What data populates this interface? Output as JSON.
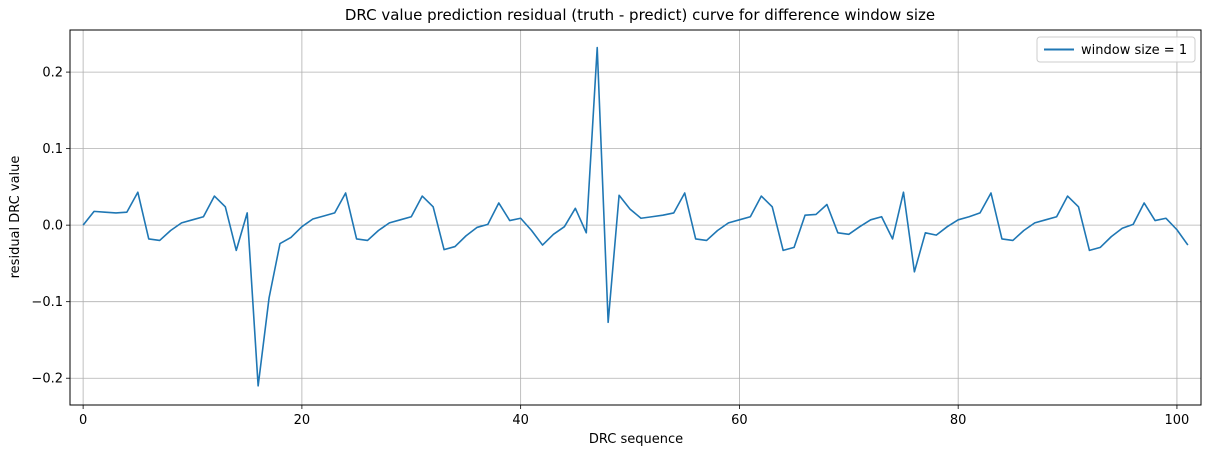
{
  "chart_data": {
    "type": "line",
    "title": "DRC value prediction residual (truth - predict) curve for difference window size",
    "xlabel": "DRC sequence",
    "ylabel": "residual DRC value",
    "xlim": [
      -1.2,
      102.2
    ],
    "ylim": [
      -0.235,
      0.255
    ],
    "xticks": [
      0,
      20,
      40,
      60,
      80,
      100
    ],
    "yticks": [
      -0.2,
      -0.1,
      0.0,
      0.1,
      0.2
    ],
    "xtick_labels": [
      "0",
      "20",
      "40",
      "60",
      "80",
      "100"
    ],
    "ytick_labels": [
      "−0.2",
      "−0.1",
      "0.0",
      "0.1",
      "0.2"
    ],
    "grid": true,
    "legend_position": "top-right",
    "series": [
      {
        "name": "window size = 1",
        "color": "#1f77b4",
        "x": [
          0,
          1,
          2,
          3,
          4,
          5,
          6,
          7,
          8,
          9,
          10,
          11,
          12,
          13,
          14,
          15,
          16,
          17,
          18,
          19,
          20,
          21,
          22,
          23,
          24,
          25,
          26,
          27,
          28,
          29,
          30,
          31,
          32,
          33,
          34,
          35,
          36,
          37,
          38,
          39,
          40,
          41,
          42,
          43,
          44,
          45,
          46,
          47,
          48,
          49,
          50,
          51,
          52,
          53,
          54,
          55,
          56,
          57,
          58,
          59,
          60,
          61,
          62,
          63,
          64,
          65,
          66,
          67,
          68,
          69,
          70,
          71,
          72,
          73,
          74,
          75,
          76,
          77,
          78,
          79,
          80,
          81,
          82,
          83,
          84,
          85,
          86,
          87,
          88,
          89,
          90,
          91,
          92,
          93,
          94,
          95,
          96,
          97,
          98,
          99,
          100,
          101
        ],
        "values": [
          0.0,
          0.018,
          0.017,
          0.016,
          0.017,
          0.043,
          -0.018,
          -0.02,
          -0.007,
          0.003,
          0.007,
          0.011,
          0.038,
          0.024,
          -0.033,
          0.016,
          -0.21,
          -0.095,
          -0.024,
          -0.016,
          -0.002,
          0.008,
          0.012,
          0.016,
          0.042,
          -0.018,
          -0.02,
          -0.007,
          0.003,
          0.007,
          0.011,
          0.038,
          0.024,
          -0.032,
          -0.028,
          -0.014,
          -0.003,
          0.001,
          0.029,
          0.006,
          0.009,
          -0.007,
          -0.026,
          -0.012,
          -0.002,
          0.022,
          -0.01,
          0.232,
          -0.127,
          0.039,
          0.021,
          0.009,
          0.011,
          0.013,
          0.016,
          0.042,
          -0.018,
          -0.02,
          -0.007,
          0.003,
          0.007,
          0.011,
          0.038,
          0.024,
          -0.033,
          -0.029,
          0.013,
          0.014,
          0.027,
          -0.01,
          -0.012,
          -0.002,
          0.007,
          0.011,
          -0.018,
          0.043,
          -0.061,
          -0.01,
          -0.013,
          -0.002,
          0.007,
          0.011,
          0.016,
          0.042,
          -0.018,
          -0.02,
          -0.007,
          0.003,
          0.007,
          0.011,
          0.038,
          0.024,
          -0.033,
          -0.029,
          -0.015,
          -0.004,
          0.001,
          0.029,
          0.006,
          0.009,
          -0.006,
          -0.026
        ]
      }
    ]
  }
}
